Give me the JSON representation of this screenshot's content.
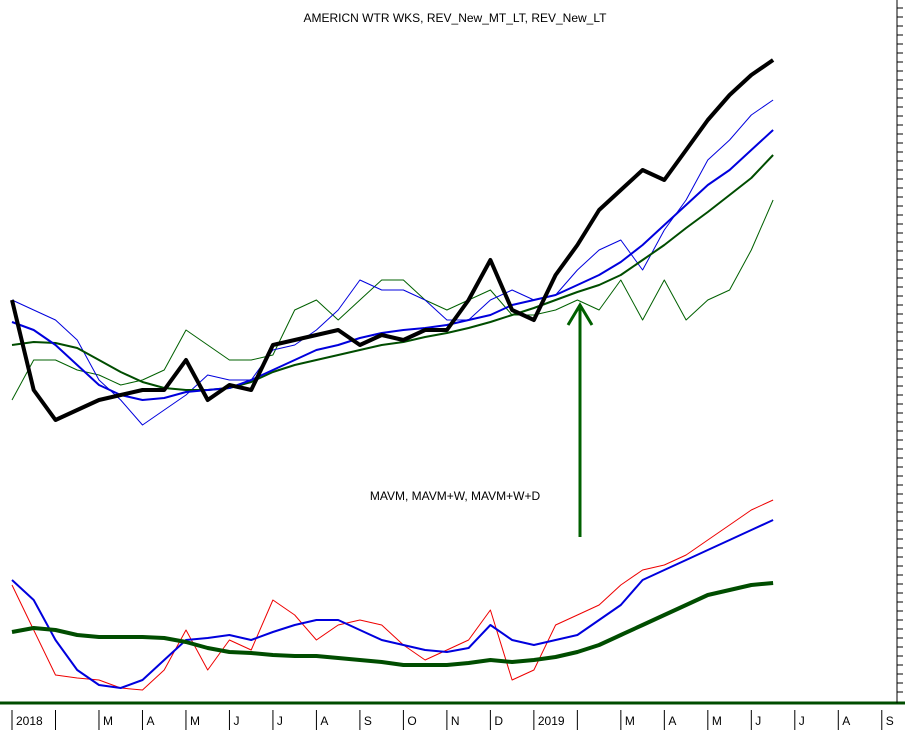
{
  "chart_data": [
    {
      "type": "line",
      "title": "AMERICN WTR WKS, REV_New_MT_LT, REV_New_LT",
      "categories": [
        "2018",
        null,
        "M",
        "A",
        "M",
        "J",
        "J",
        "A",
        "S",
        "O",
        "N",
        "D",
        "2019",
        null,
        "M",
        "A",
        "M",
        "J",
        "J",
        "A",
        "S"
      ],
      "x": [
        0,
        0.5,
        1,
        1.5,
        2,
        2.5,
        3,
        3.5,
        4,
        4.5,
        5,
        5.5,
        6,
        6.5,
        7,
        7.5,
        8,
        8.5,
        9,
        9.5,
        10,
        10.5,
        11,
        11.5,
        12,
        12.5,
        13,
        13.5,
        14,
        14.5,
        15,
        15.5,
        16,
        16.5,
        17,
        17.5
      ],
      "xlim": [
        0,
        20.35
      ],
      "ylim": [
        0,
        460
      ],
      "series": [
        {
          "color": "#006000",
          "width": 1,
          "values": [
            100,
            140,
            140,
            130,
            125,
            115,
            120,
            130,
            170,
            155,
            140,
            140,
            145,
            190,
            200,
            180,
            200,
            220,
            220,
            200,
            190,
            200,
            210,
            185,
            185,
            190,
            200,
            190,
            220,
            180,
            220,
            180,
            200,
            210,
            250,
            300
          ]
        },
        {
          "color": "#0000dd",
          "width": 1,
          "values": [
            200,
            190,
            180,
            160,
            120,
            100,
            75,
            90,
            105,
            125,
            120,
            120,
            150,
            155,
            170,
            190,
            220,
            210,
            210,
            200,
            180,
            180,
            200,
            210,
            200,
            205,
            230,
            250,
            260,
            230,
            270,
            300,
            340,
            360,
            385,
            400
          ]
        },
        {
          "color": "#004d00",
          "width": 2,
          "values": [
            155,
            158,
            157,
            152,
            140,
            128,
            118,
            112,
            110,
            110,
            112,
            118,
            128,
            135,
            140,
            145,
            150,
            155,
            158,
            163,
            167,
            172,
            178,
            185,
            192,
            200,
            208,
            215,
            225,
            240,
            255,
            272,
            288,
            305,
            322,
            345
          ]
        },
        {
          "color": "#0000dd",
          "width": 2,
          "values": [
            178,
            170,
            155,
            135,
            115,
            105,
            100,
            102,
            108,
            110,
            112,
            120,
            130,
            140,
            150,
            155,
            162,
            167,
            170,
            172,
            175,
            180,
            185,
            195,
            200,
            205,
            215,
            225,
            238,
            255,
            275,
            295,
            315,
            330,
            350,
            370
          ]
        },
        {
          "color": "#000000",
          "width": 4,
          "values": [
            200,
            110,
            80,
            90,
            100,
            105,
            110,
            110,
            140,
            100,
            115,
            110,
            155,
            160,
            165,
            170,
            155,
            165,
            160,
            170,
            170,
            200,
            240,
            190,
            180,
            225,
            255,
            290,
            310,
            330,
            320,
            350,
            380,
            405,
            425,
            440
          ]
        }
      ]
    },
    {
      "type": "line",
      "annotation": "MAVM, MAVM+W, MAVM+W+D",
      "x": [
        0,
        0.5,
        1,
        1.5,
        2,
        2.5,
        3,
        3.5,
        4,
        4.5,
        5,
        5.5,
        6,
        6.5,
        7,
        7.5,
        8,
        8.5,
        9,
        9.5,
        10,
        10.5,
        11,
        11.5,
        12,
        12.5,
        13,
        13.5,
        14,
        14.5,
        15,
        15.5,
        16,
        16.5,
        17,
        17.5
      ],
      "xlim": [
        0,
        20.35
      ],
      "ylim": [
        0,
        200
      ],
      "series": [
        {
          "color": "#ee0000",
          "width": 1,
          "values": [
            115,
            70,
            25,
            22,
            20,
            12,
            10,
            30,
            70,
            30,
            60,
            50,
            100,
            85,
            60,
            75,
            80,
            75,
            55,
            40,
            50,
            60,
            90,
            20,
            30,
            75,
            85,
            95,
            115,
            130,
            135,
            145,
            160,
            175,
            190,
            200
          ]
        },
        {
          "color": "#0000dd",
          "width": 2,
          "values": [
            120,
            100,
            60,
            30,
            15,
            12,
            20,
            40,
            60,
            62,
            65,
            60,
            68,
            75,
            80,
            80,
            70,
            60,
            55,
            50,
            48,
            52,
            75,
            60,
            55,
            60,
            65,
            80,
            95,
            120,
            130,
            140,
            150,
            160,
            170,
            180
          ]
        },
        {
          "color": "#004d00",
          "width": 4,
          "values": [
            68,
            72,
            70,
            65,
            63,
            63,
            63,
            62,
            58,
            52,
            48,
            47,
            45,
            44,
            44,
            42,
            40,
            38,
            35,
            35,
            35,
            37,
            40,
            38,
            40,
            43,
            48,
            55,
            65,
            75,
            85,
            95,
            105,
            110,
            115,
            117
          ]
        }
      ]
    }
  ]
}
